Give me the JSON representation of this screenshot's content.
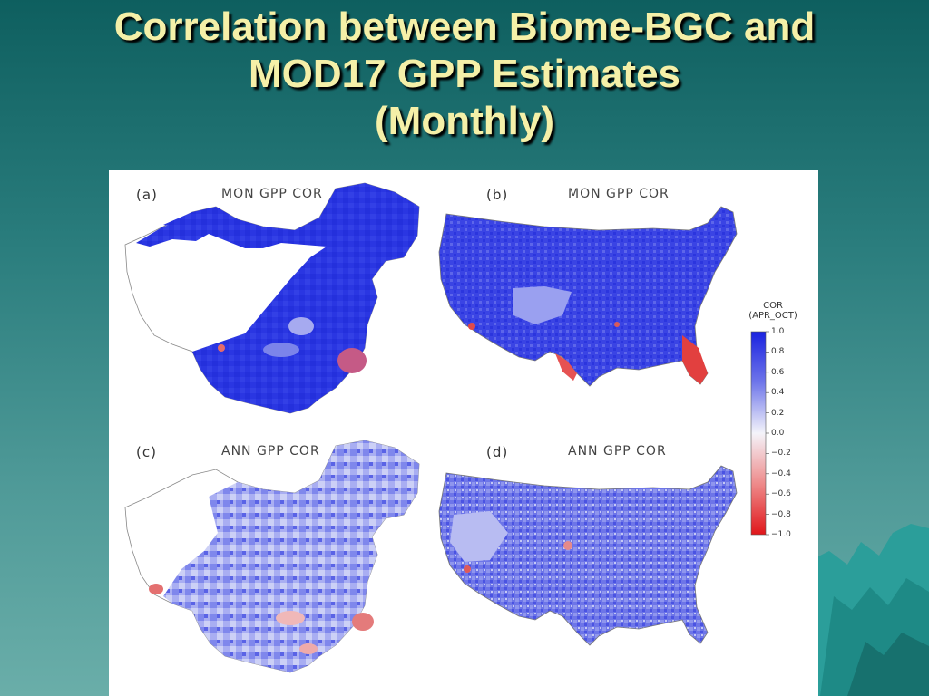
{
  "slide": {
    "title_line1": "Correlation between Biome-BGC and",
    "title_line2": "MOD17 GPP Estimates",
    "title_line3": "(Monthly)"
  },
  "colors": {
    "background_top": "#0e5f5f",
    "background_bottom": "#6aaea9",
    "title": "#f5f0a8",
    "positive_strong": "#1a22e0",
    "negative_strong": "#e0161a"
  },
  "panels": [
    {
      "label": "(a)",
      "title": "MON GPP COR",
      "region": "China"
    },
    {
      "label": "(b)",
      "title": "MON GPP COR",
      "region": "USA"
    },
    {
      "label": "(c)",
      "title": "ANN GPP COR",
      "region": "China"
    },
    {
      "label": "(d)",
      "title": "ANN GPP COR",
      "region": "USA"
    }
  ],
  "colorbar": {
    "title_line1": "COR",
    "title_line2": "(APR_OCT)",
    "ticks": [
      "1.0",
      "0.8",
      "0.6",
      "0.4",
      "0.2",
      "0.0",
      "−0.2",
      "−0.4",
      "−0.6",
      "−0.8",
      "−1.0"
    ],
    "max": 1.0,
    "min": -1.0
  }
}
